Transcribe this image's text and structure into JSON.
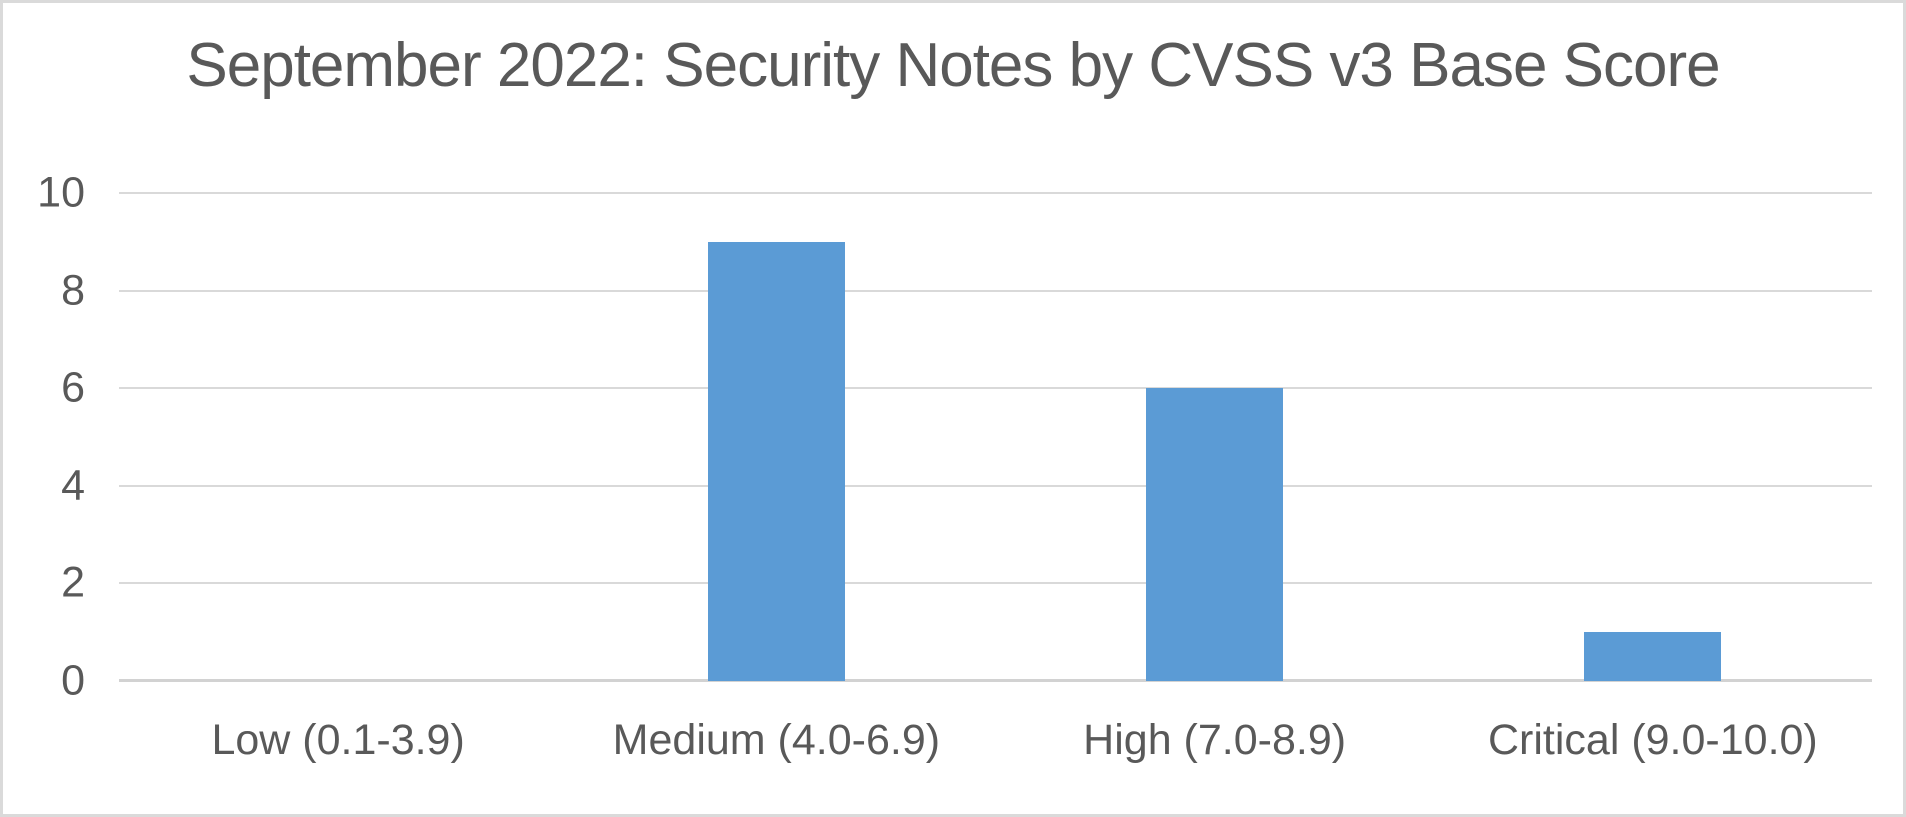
{
  "frame": {
    "background_color": "#ffffff",
    "border_color": "#dadada"
  },
  "chart_data": {
    "type": "bar",
    "title": "September 2022: Security Notes by CVSS v3 Base Score",
    "categories": [
      "Low (0.1-3.9)",
      "Medium (4.0-6.9)",
      "High (7.0-8.9)",
      "Critical (9.0-10.0)"
    ],
    "values": [
      0,
      9,
      6,
      1
    ],
    "xlabel": "",
    "ylabel": "",
    "ylim": [
      0,
      10
    ],
    "yticks": [
      0,
      2,
      4,
      6,
      8,
      10
    ],
    "grid": true,
    "legend": false,
    "bar_color": "#5B9BD5",
    "text_color": "#595959",
    "gridline_color": "#d9d9d9",
    "axis_line_color": "#d2d2d2"
  }
}
